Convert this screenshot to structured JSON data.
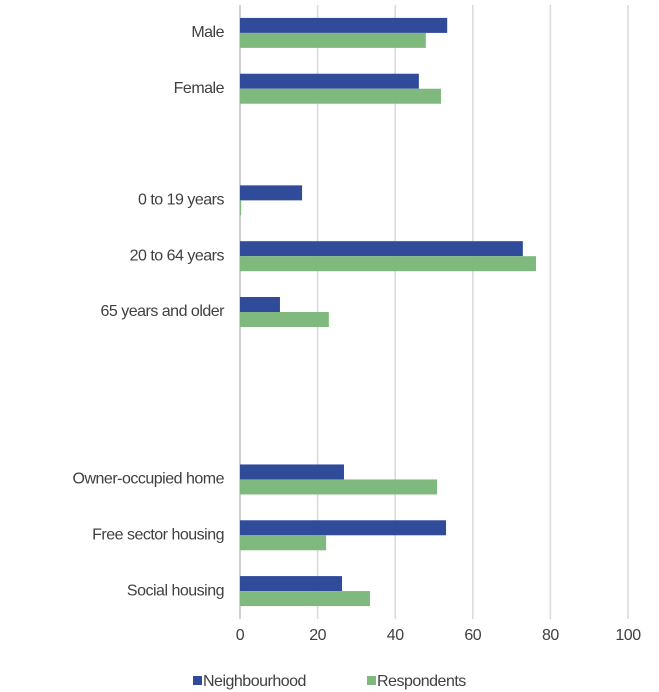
{
  "chart_data": {
    "type": "barh",
    "categories": [
      "Male",
      "Female",
      null,
      "0 to 19 years",
      "20 to 64 years",
      "65 years and older",
      null,
      null,
      "Owner-occupied home",
      "Free sector housing",
      "Social housing"
    ],
    "series": [
      {
        "name": "Neighbourhood",
        "color": "#2f4b9a",
        "values": [
          53.4,
          46.1,
          null,
          16,
          72.9,
          10.3,
          null,
          null,
          26.8,
          53.1,
          26.3
        ]
      },
      {
        "name": "Respondents",
        "color": "#80b97e",
        "values": [
          47.9,
          51.8,
          null,
          0.3,
          76.3,
          22.9,
          null,
          null,
          50.8,
          22.2,
          33.5
        ]
      }
    ],
    "xlim": [
      0,
      100
    ],
    "xticks": [
      0,
      20,
      40,
      60,
      80,
      100
    ],
    "grid": true,
    "legend": "bottom"
  }
}
